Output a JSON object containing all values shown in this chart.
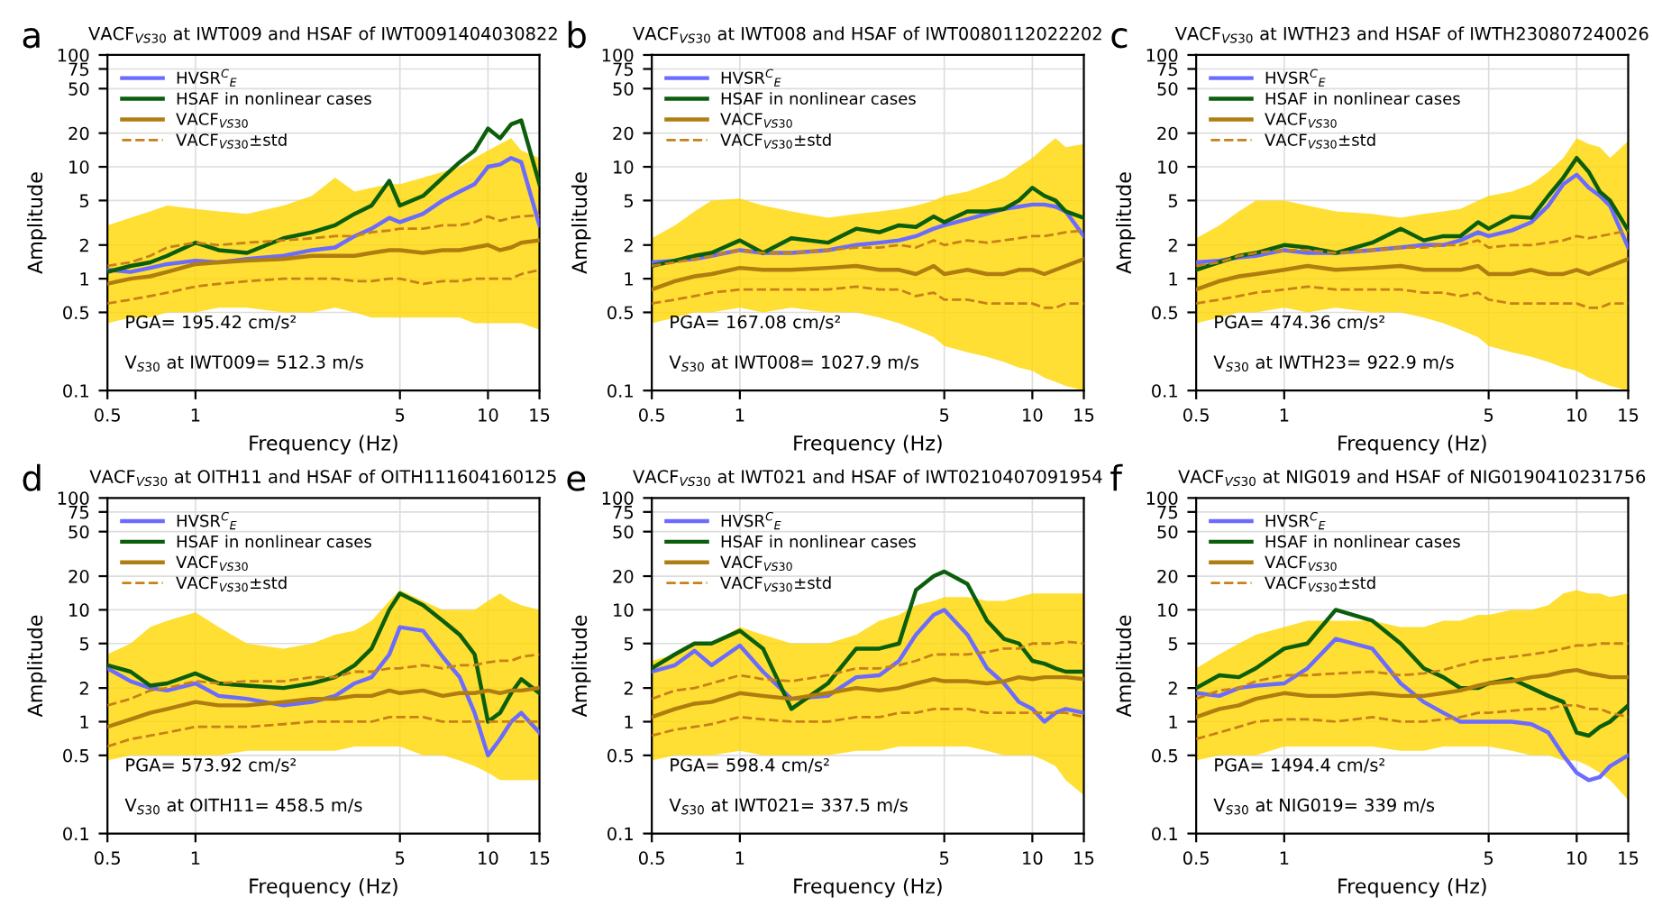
{
  "chart_data": [
    {
      "type": "line",
      "title": "VACF$_{VS30}$ at IWT009 and HSAF of IWT0091404030822",
      "xlabel": "Frequency (Hz)",
      "ylabel": "Amplitude",
      "log": "xy",
      "grid": true,
      "legend": "top left",
      "xlim": [
        0.5,
        15
      ],
      "xticks": [
        0.5,
        1,
        5,
        10,
        15
      ],
      "ylim": [
        0.1,
        100
      ],
      "yticks": [
        0.1,
        0.5,
        1,
        2,
        5,
        10,
        20,
        50,
        75,
        100
      ],
      "annotations": [
        "a",
        "PGA= 195.42 cm/s²",
        "V$_{S30}$ at IWT009= 512.3 m/s"
      ],
      "x": [
        0.5,
        0.6,
        0.7,
        0.8,
        1,
        1.2,
        1.5,
        2,
        2.5,
        3,
        3.5,
        4,
        4.6,
        5,
        6,
        7,
        8,
        9,
        10,
        11,
        12,
        13,
        15
      ],
      "series": [
        {
          "name": "HVSR$^{C}$$_{E}$",
          "color": "#6b6bff",
          "line_style": "solid",
          "values": [
            1.2,
            1.15,
            1.25,
            1.35,
            1.45,
            1.4,
            1.5,
            1.6,
            1.8,
            1.9,
            2.4,
            2.8,
            3.5,
            3.2,
            3.8,
            5,
            6,
            7,
            10,
            10.5,
            12,
            11,
            3
          ]
        },
        {
          "name": "HSAF in nonlinear cases",
          "color": "#0b5e0b",
          "line_style": "solid",
          "values": [
            1.15,
            1.3,
            1.4,
            1.6,
            2.1,
            1.8,
            1.7,
            2.3,
            2.6,
            3,
            3.8,
            4.5,
            7.5,
            4.5,
            5.5,
            8,
            11,
            14,
            22,
            18,
            24,
            26,
            7
          ]
        },
        {
          "name": "VACF$_{VS30}$",
          "color": "#b07d10",
          "line_style": "solid",
          "values": [
            0.9,
            1.0,
            1.05,
            1.15,
            1.35,
            1.4,
            1.45,
            1.5,
            1.6,
            1.6,
            1.6,
            1.7,
            1.8,
            1.8,
            1.7,
            1.8,
            1.8,
            1.9,
            2.0,
            1.8,
            1.9,
            2.1,
            2.2
          ],
          "lower": [
            0.4,
            0.45,
            0.45,
            0.5,
            0.5,
            0.55,
            0.55,
            0.5,
            0.5,
            0.55,
            0.5,
            0.45,
            0.45,
            0.45,
            0.45,
            0.45,
            0.45,
            0.4,
            0.4,
            0.4,
            0.4,
            0.4,
            0.35
          ],
          "upper": [
            3,
            3.5,
            4,
            4.5,
            4.2,
            4,
            3.8,
            4.5,
            5.5,
            8,
            6,
            6.5,
            7,
            7,
            8,
            9,
            10,
            12,
            14,
            16,
            18,
            14,
            12
          ]
        },
        {
          "name": "VACF$_{VS30}$±std",
          "color": "#c8801a",
          "line_style": "dashed",
          "values": [
            1.3,
            1.4,
            1.6,
            1.9,
            2.1,
            2.0,
            2.1,
            2.2,
            2.3,
            2.4,
            2.4,
            2.6,
            2.7,
            2.8,
            2.8,
            3.0,
            3.0,
            3.2,
            3.6,
            3.3,
            3.5,
            3.6,
            3.7
          ]
        },
        {
          "color": "#c8801a",
          "line_style": "dashed",
          "values": [
            0.6,
            0.65,
            0.7,
            0.75,
            0.85,
            0.9,
            0.95,
            1.0,
            1.0,
            1.0,
            0.95,
            0.95,
            1.0,
            1.0,
            0.9,
            0.95,
            0.95,
            1.0,
            1.0,
            1.0,
            1.0,
            1.1,
            1.2
          ]
        }
      ]
    },
    {
      "type": "line",
      "title": "VACF$_{VS30}$ at IWT008 and HSAF of IWT0080112022202",
      "xlabel": "Frequency (Hz)",
      "ylabel": "Amplitude",
      "log": "xy",
      "grid": true,
      "legend": "top left",
      "xlim": [
        0.5,
        15
      ],
      "xticks": [
        0.5,
        1,
        5,
        10,
        15
      ],
      "ylim": [
        0.1,
        100
      ],
      "yticks": [
        0.1,
        0.5,
        1,
        2,
        5,
        10,
        20,
        50,
        75,
        100
      ],
      "annotations": [
        "b",
        "PGA= 167.08 cm/s²",
        "V$_{S30}$ at IWT008= 1027.9 m/s"
      ],
      "x": [
        0.5,
        0.6,
        0.7,
        0.8,
        1,
        1.2,
        1.5,
        2,
        2.5,
        3,
        3.5,
        4,
        4.6,
        5,
        6,
        7,
        8,
        9,
        10,
        11,
        12,
        13,
        15
      ],
      "series": [
        {
          "name": "HVSR$^{C}$$_{E}$",
          "color": "#6b6bff",
          "line_style": "solid",
          "values": [
            1.4,
            1.45,
            1.5,
            1.6,
            1.8,
            1.7,
            1.7,
            1.8,
            2.0,
            2.1,
            2.2,
            2.4,
            2.8,
            3.0,
            3.4,
            3.8,
            4.2,
            4.4,
            4.6,
            4.6,
            4.4,
            4.0,
            2.4
          ]
        },
        {
          "name": "HSAF in nonlinear cases",
          "color": "#0b5e0b",
          "line_style": "solid",
          "values": [
            1.3,
            1.45,
            1.6,
            1.7,
            2.2,
            1.7,
            2.3,
            2.1,
            2.8,
            2.6,
            3.0,
            2.9,
            3.6,
            3.2,
            4.0,
            4.0,
            4.2,
            5.0,
            6.5,
            5.5,
            5.0,
            4.0,
            3.5
          ]
        },
        {
          "name": "VACF$_{VS30}$",
          "color": "#b07d10",
          "line_style": "solid",
          "values": [
            0.8,
            0.95,
            1.05,
            1.1,
            1.25,
            1.2,
            1.2,
            1.25,
            1.3,
            1.2,
            1.2,
            1.1,
            1.3,
            1.1,
            1.2,
            1.1,
            1.1,
            1.2,
            1.2,
            1.1,
            1.2,
            1.3,
            1.5
          ],
          "lower": [
            0.4,
            0.45,
            0.5,
            0.5,
            0.55,
            0.5,
            0.55,
            0.5,
            0.5,
            0.45,
            0.4,
            0.35,
            0.3,
            0.25,
            0.22,
            0.2,
            0.18,
            0.16,
            0.15,
            0.13,
            0.12,
            0.11,
            0.1
          ],
          "upper": [
            2.3,
            3,
            4,
            5,
            5.2,
            4.5,
            4,
            3.5,
            3.8,
            4,
            4.2,
            4.5,
            5,
            5.5,
            6,
            7,
            8,
            10,
            12,
            15,
            18,
            15,
            16
          ]
        },
        {
          "name": "VACF$_{VS30}$±std",
          "color": "#c8801a",
          "line_style": "dashed",
          "values": [
            1.3,
            1.4,
            1.5,
            1.6,
            1.8,
            1.7,
            1.7,
            1.8,
            1.9,
            1.9,
            2.0,
            1.9,
            2.2,
            2.0,
            2.2,
            2.1,
            2.2,
            2.3,
            2.4,
            2.4,
            2.5,
            2.6,
            2.7
          ]
        },
        {
          "color": "#c8801a",
          "line_style": "dashed",
          "values": [
            0.6,
            0.65,
            0.7,
            0.75,
            0.8,
            0.8,
            0.8,
            0.8,
            0.85,
            0.8,
            0.8,
            0.7,
            0.75,
            0.65,
            0.65,
            0.6,
            0.6,
            0.6,
            0.6,
            0.55,
            0.55,
            0.6,
            0.6
          ]
        }
      ]
    },
    {
      "type": "line",
      "title": "VACF$_{VS30}$ at IWTH23 and HSAF of IWTH230807240026",
      "xlabel": "Frequency (Hz)",
      "ylabel": "Amplitude",
      "log": "xy",
      "grid": true,
      "legend": "top left",
      "xlim": [
        0.5,
        15
      ],
      "xticks": [
        0.5,
        1,
        5,
        10,
        15
      ],
      "ylim": [
        0.1,
        100
      ],
      "yticks": [
        0.1,
        0.5,
        1,
        2,
        5,
        10,
        20,
        50,
        75,
        100
      ],
      "annotations": [
        "c",
        "PGA= 474.36 cm/s²",
        "V$_{S30}$ at IWTH23= 922.9 m/s"
      ],
      "x": [
        0.5,
        0.6,
        0.7,
        0.8,
        1,
        1.2,
        1.5,
        2,
        2.5,
        3,
        3.5,
        4,
        4.6,
        5,
        6,
        7,
        8,
        9,
        10,
        11,
        12,
        13,
        15
      ],
      "series": [
        {
          "name": "HVSR$^{C}$$_{E}$",
          "color": "#6b6bff",
          "line_style": "solid",
          "values": [
            1.4,
            1.45,
            1.55,
            1.6,
            1.8,
            1.7,
            1.7,
            1.8,
            1.9,
            2.0,
            2.0,
            2.2,
            2.6,
            2.4,
            2.7,
            3.2,
            4.5,
            7,
            8.5,
            6.5,
            5.5,
            4.5,
            1.9
          ]
        },
        {
          "name": "HSAF in nonlinear cases",
          "color": "#0b5e0b",
          "line_style": "solid",
          "values": [
            1.2,
            1.4,
            1.6,
            1.7,
            2.0,
            1.9,
            1.7,
            2.1,
            2.8,
            2.2,
            2.4,
            2.4,
            3.2,
            2.8,
            3.6,
            3.5,
            5.5,
            8,
            12,
            9,
            6,
            5,
            2.7
          ]
        },
        {
          "name": "VACF$_{VS30}$",
          "color": "#b07d10",
          "line_style": "solid",
          "values": [
            0.8,
            0.95,
            1.05,
            1.1,
            1.2,
            1.3,
            1.2,
            1.25,
            1.3,
            1.2,
            1.2,
            1.2,
            1.3,
            1.1,
            1.1,
            1.2,
            1.1,
            1.1,
            1.2,
            1.1,
            1.2,
            1.3,
            1.5
          ],
          "lower": [
            0.4,
            0.45,
            0.5,
            0.5,
            0.55,
            0.5,
            0.55,
            0.5,
            0.5,
            0.45,
            0.4,
            0.35,
            0.3,
            0.25,
            0.22,
            0.2,
            0.18,
            0.16,
            0.15,
            0.13,
            0.12,
            0.11,
            0.1
          ],
          "upper": [
            2.3,
            3,
            4,
            5,
            5,
            4.5,
            4,
            3.8,
            3.5,
            3.8,
            4,
            4.2,
            5,
            5.5,
            6,
            7,
            9,
            12,
            18,
            16,
            15,
            12,
            17
          ]
        },
        {
          "name": "VACF$_{VS30}$±std",
          "color": "#c8801a",
          "line_style": "dashed",
          "values": [
            1.3,
            1.4,
            1.6,
            1.7,
            1.8,
            1.8,
            1.7,
            1.8,
            1.9,
            1.9,
            2.0,
            2.0,
            2.2,
            1.9,
            2.0,
            2.0,
            2.1,
            2.2,
            2.4,
            2.3,
            2.4,
            2.5,
            2.7
          ]
        },
        {
          "color": "#c8801a",
          "line_style": "dashed",
          "values": [
            0.6,
            0.65,
            0.7,
            0.75,
            0.8,
            0.85,
            0.8,
            0.8,
            0.8,
            0.75,
            0.75,
            0.7,
            0.75,
            0.65,
            0.6,
            0.6,
            0.6,
            0.6,
            0.6,
            0.55,
            0.55,
            0.6,
            0.6
          ]
        }
      ]
    },
    {
      "type": "line",
      "title": "VACF$_{VS30}$ at OITH11 and HSAF of OITH111604160125",
      "xlabel": "Frequency (Hz)",
      "ylabel": "Amplitude",
      "log": "xy",
      "grid": true,
      "legend": "top left",
      "xlim": [
        0.5,
        15
      ],
      "xticks": [
        0.5,
        1,
        5,
        10,
        15
      ],
      "ylim": [
        0.1,
        100
      ],
      "yticks": [
        0.1,
        0.5,
        1,
        2,
        5,
        10,
        20,
        50,
        75,
        100
      ],
      "annotations": [
        "d",
        "PGA= 573.92 cm/s²",
        "V$_{S30}$ at OITH11= 458.5 m/s"
      ],
      "x": [
        0.5,
        0.6,
        0.7,
        0.8,
        1,
        1.2,
        1.5,
        2,
        2.5,
        3,
        3.5,
        4,
        4.6,
        5,
        6,
        7,
        8,
        9,
        10,
        11,
        12,
        13,
        15
      ],
      "series": [
        {
          "name": "HVSR$^{C}$$_{E}$",
          "color": "#6b6bff",
          "line_style": "solid",
          "values": [
            3.0,
            2.3,
            2.0,
            1.9,
            2.2,
            1.7,
            1.6,
            1.4,
            1.5,
            1.7,
            2.2,
            2.5,
            4,
            7,
            6.5,
            3.8,
            2.5,
            1.2,
            0.5,
            0.7,
            1.0,
            1.2,
            0.8
          ]
        },
        {
          "name": "HSAF in nonlinear cases",
          "color": "#0b5e0b",
          "line_style": "solid",
          "values": [
            3.2,
            2.8,
            2.1,
            2.2,
            2.7,
            2.2,
            2.1,
            2.0,
            2.2,
            2.5,
            3.2,
            4.5,
            10,
            14,
            11,
            8,
            6,
            4,
            1.0,
            1.2,
            1.8,
            2.4,
            1.8
          ]
        },
        {
          "name": "VACF$_{VS30}$",
          "color": "#b07d10",
          "line_style": "solid",
          "values": [
            0.9,
            1.05,
            1.2,
            1.3,
            1.5,
            1.4,
            1.4,
            1.5,
            1.6,
            1.6,
            1.7,
            1.7,
            1.9,
            1.8,
            1.9,
            1.7,
            1.8,
            1.8,
            1.9,
            1.8,
            1.9,
            1.9,
            2.0
          ],
          "lower": [
            0.45,
            0.5,
            0.5,
            0.5,
            0.5,
            0.5,
            0.55,
            0.55,
            0.55,
            0.55,
            0.6,
            0.6,
            0.6,
            0.6,
            0.5,
            0.5,
            0.45,
            0.4,
            0.35,
            0.3,
            0.3,
            0.3,
            0.3
          ],
          "upper": [
            4,
            5,
            7,
            8,
            9.5,
            7,
            5,
            4.5,
            5,
            6,
            6.5,
            8,
            12,
            15,
            12,
            10,
            10,
            10,
            12,
            14,
            12,
            11,
            10
          ]
        },
        {
          "name": "VACF$_{VS30}$±std",
          "color": "#c8801a",
          "line_style": "dashed",
          "values": [
            1.4,
            1.6,
            1.9,
            2.0,
            2.3,
            2.2,
            2.3,
            2.3,
            2.5,
            2.5,
            2.8,
            2.8,
            3.0,
            3.0,
            3.2,
            3.0,
            3.2,
            3.2,
            3.4,
            3.5,
            3.5,
            3.8,
            4.0
          ]
        },
        {
          "color": "#c8801a",
          "line_style": "dashed",
          "values": [
            0.6,
            0.7,
            0.75,
            0.8,
            0.9,
            0.9,
            0.9,
            0.95,
            1.0,
            1.0,
            1.0,
            1.0,
            1.1,
            1.1,
            1.1,
            1.0,
            1.0,
            1.0,
            1.0,
            1.0,
            1.0,
            1.0,
            1.0
          ]
        }
      ]
    },
    {
      "type": "line",
      "title": "VACF$_{VS30}$ at IWT021 and HSAF of IWT0210407091954",
      "xlabel": "Frequency (Hz)",
      "ylabel": "Amplitude",
      "log": "xy",
      "grid": true,
      "legend": "top left",
      "xlim": [
        0.5,
        15
      ],
      "xticks": [
        0.5,
        1,
        5,
        10,
        15
      ],
      "ylim": [
        0.1,
        100
      ],
      "yticks": [
        0.1,
        0.5,
        1,
        2,
        5,
        10,
        20,
        50,
        75,
        100
      ],
      "annotations": [
        "e",
        "PGA= 598.4 cm/s²",
        "V$_{S30}$ at IWT021= 337.5 m/s"
      ],
      "x": [
        0.5,
        0.6,
        0.7,
        0.8,
        1,
        1.2,
        1.5,
        2,
        2.5,
        3,
        3.5,
        4,
        4.6,
        5,
        6,
        7,
        8,
        9,
        10,
        11,
        12,
        13,
        15
      ],
      "series": [
        {
          "name": "HVSR$^{C}$$_{E}$",
          "color": "#6b6bff",
          "line_style": "solid",
          "values": [
            2.8,
            3.2,
            4.3,
            3.2,
            4.8,
            2.8,
            1.6,
            1.7,
            2.5,
            2.6,
            3.5,
            6,
            9,
            10,
            6,
            3,
            2.2,
            1.5,
            1.3,
            1.0,
            1.2,
            1.3,
            1.2
          ]
        },
        {
          "name": "HSAF in nonlinear cases",
          "color": "#0b5e0b",
          "line_style": "solid",
          "values": [
            3.0,
            4.0,
            5,
            5,
            6.5,
            4.5,
            1.3,
            2.2,
            4.5,
            4.5,
            5,
            15,
            20,
            22,
            17,
            8,
            5.5,
            5,
            3.5,
            3.3,
            3.0,
            2.8,
            2.8
          ]
        },
        {
          "name": "VACF$_{VS30}$",
          "color": "#b07d10",
          "line_style": "solid",
          "values": [
            1.1,
            1.3,
            1.45,
            1.5,
            1.8,
            1.7,
            1.6,
            1.8,
            2.0,
            1.9,
            2.0,
            2.2,
            2.4,
            2.3,
            2.3,
            2.2,
            2.3,
            2.5,
            2.4,
            2.5,
            2.5,
            2.5,
            2.4
          ],
          "lower": [
            0.45,
            0.5,
            0.5,
            0.5,
            0.55,
            0.5,
            0.5,
            0.5,
            0.55,
            0.55,
            0.6,
            0.6,
            0.6,
            0.6,
            0.6,
            0.55,
            0.5,
            0.5,
            0.5,
            0.45,
            0.4,
            0.3,
            0.22
          ],
          "upper": [
            3.5,
            4,
            5,
            5,
            7,
            6,
            5,
            5,
            6,
            8,
            9,
            11,
            12,
            13,
            13,
            12,
            12,
            13,
            14,
            14,
            14,
            14,
            14
          ]
        },
        {
          "name": "VACF$_{VS30}$±std",
          "color": "#c8801a",
          "line_style": "dashed",
          "values": [
            1.6,
            1.9,
            2.0,
            2.2,
            2.6,
            2.4,
            2.3,
            2.6,
            3.0,
            3.0,
            3.2,
            3.5,
            4,
            4,
            4,
            4.2,
            4.5,
            4.5,
            5,
            5,
            5,
            5.2,
            5
          ]
        },
        {
          "color": "#c8801a",
          "line_style": "dashed",
          "values": [
            0.75,
            0.85,
            0.9,
            0.95,
            1.1,
            1.05,
            1.0,
            1.0,
            1.1,
            1.1,
            1.2,
            1.2,
            1.3,
            1.3,
            1.3,
            1.2,
            1.2,
            1.2,
            1.2,
            1.2,
            1.2,
            1.2,
            1.1
          ]
        }
      ]
    },
    {
      "type": "line",
      "title": "VACF$_{VS30}$ at NIG019 and HSAF of NIG0190410231756",
      "xlabel": "Frequency (Hz)",
      "ylabel": "Amplitude",
      "log": "xy",
      "grid": true,
      "legend": "top left",
      "xlim": [
        0.5,
        15
      ],
      "xticks": [
        0.5,
        1,
        5,
        10,
        15
      ],
      "ylim": [
        0.1,
        100
      ],
      "yticks": [
        0.1,
        0.5,
        1,
        2,
        5,
        10,
        20,
        50,
        75,
        100
      ],
      "annotations": [
        "f",
        "PGA= 1494.4 cm/s²",
        "V$_{S30}$ at NIG019= 339 m/s"
      ],
      "x": [
        0.5,
        0.6,
        0.7,
        0.8,
        1,
        1.2,
        1.5,
        2,
        2.5,
        3,
        3.5,
        4,
        4.6,
        5,
        6,
        7,
        8,
        9,
        10,
        11,
        12,
        13,
        15
      ],
      "series": [
        {
          "name": "HVSR$^{C}$$_{E}$",
          "color": "#6b6bff",
          "line_style": "solid",
          "values": [
            1.8,
            1.7,
            2.0,
            2.1,
            2.2,
            3.0,
            5.5,
            4.5,
            2.2,
            1.5,
            1.2,
            1.0,
            1.0,
            1.0,
            1.0,
            0.95,
            0.8,
            0.5,
            0.35,
            0.3,
            0.32,
            0.4,
            0.5
          ]
        },
        {
          "name": "HSAF in nonlinear cases",
          "color": "#0b5e0b",
          "line_style": "solid",
          "values": [
            2.0,
            2.6,
            2.5,
            3.0,
            4.5,
            5,
            10,
            8,
            5,
            3,
            2.5,
            2.0,
            2.0,
            2.2,
            2.4,
            2.0,
            1.7,
            1.5,
            0.8,
            0.75,
            0.9,
            1.0,
            1.4
          ]
        },
        {
          "name": "VACF$_{VS30}$",
          "color": "#b07d10",
          "line_style": "solid",
          "values": [
            1.1,
            1.3,
            1.4,
            1.6,
            1.8,
            1.7,
            1.7,
            1.8,
            1.7,
            1.7,
            1.8,
            1.9,
            2.1,
            2.2,
            2.3,
            2.5,
            2.6,
            2.8,
            2.9,
            2.7,
            2.6,
            2.5,
            2.5
          ],
          "lower": [
            0.45,
            0.5,
            0.5,
            0.5,
            0.6,
            0.6,
            0.6,
            0.6,
            0.55,
            0.55,
            0.6,
            0.6,
            0.6,
            0.6,
            0.55,
            0.5,
            0.5,
            0.45,
            0.45,
            0.4,
            0.35,
            0.3,
            0.2
          ],
          "upper": [
            3,
            4,
            5,
            6,
            7,
            8,
            8,
            8,
            7,
            7,
            8,
            8,
            9,
            9,
            10,
            10,
            11,
            14,
            15,
            14,
            14,
            13,
            14
          ]
        },
        {
          "name": "VACF$_{VS30}$±std",
          "color": "#c8801a",
          "line_style": "dashed",
          "values": [
            1.6,
            1.9,
            2.0,
            2.3,
            2.6,
            2.6,
            2.7,
            2.8,
            2.6,
            2.7,
            2.9,
            3.2,
            3.5,
            3.6,
            3.8,
            4,
            4.2,
            4.5,
            4.8,
            4.8,
            5,
            5,
            5
          ]
        },
        {
          "color": "#c8801a",
          "line_style": "dashed",
          "values": [
            0.7,
            0.8,
            0.9,
            1.0,
            1.05,
            1.05,
            1.0,
            1.1,
            1.0,
            1.0,
            1.05,
            1.1,
            1.2,
            1.2,
            1.25,
            1.3,
            1.3,
            1.4,
            1.4,
            1.3,
            1.3,
            1.2,
            1.1
          ]
        }
      ]
    }
  ]
}
